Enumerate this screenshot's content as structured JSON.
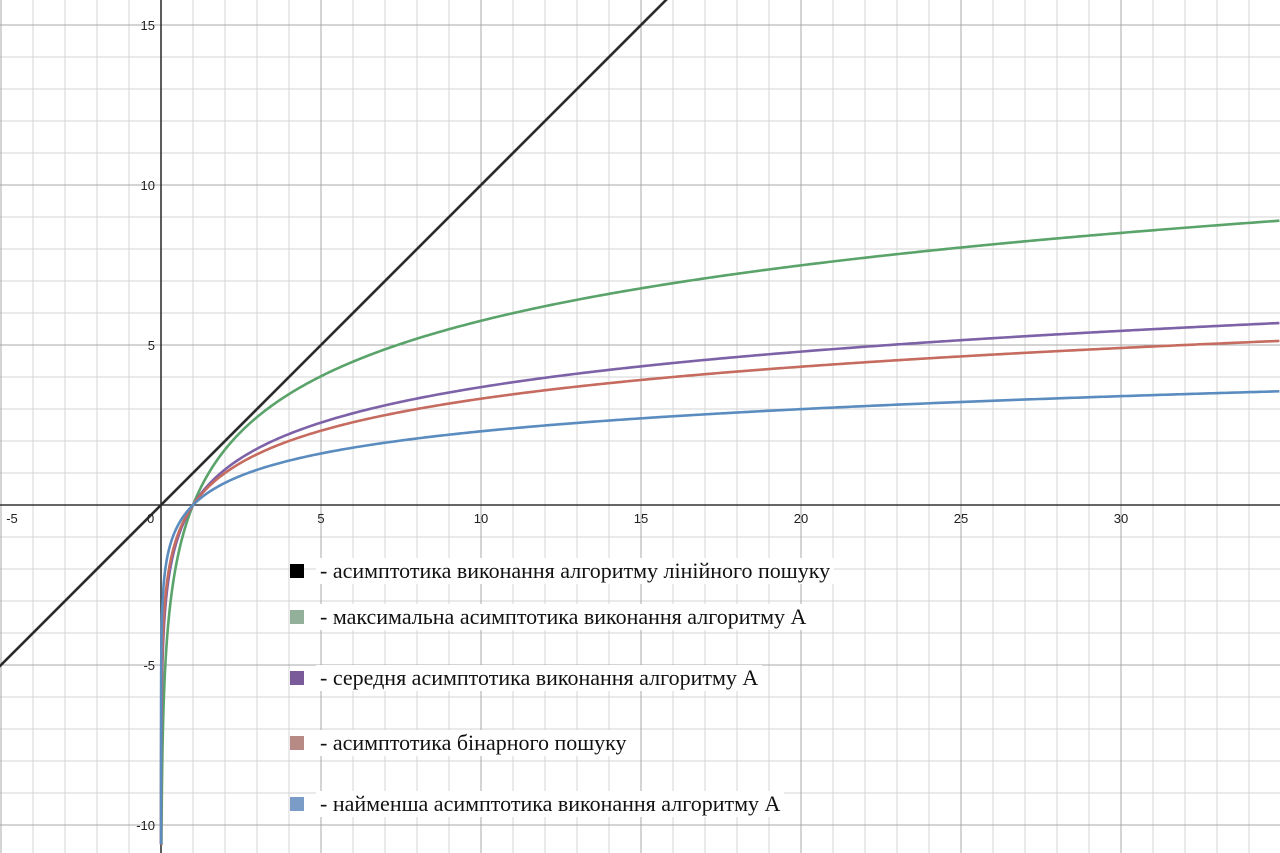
{
  "chart_data": {
    "type": "line",
    "title": "",
    "xlabel": "",
    "ylabel": "",
    "xlim": [
      -5,
      35
    ],
    "ylim": [
      -10.6,
      16
    ],
    "grid": true,
    "legend_placement": "bottom-center",
    "x_ticks": [
      "-5",
      "0",
      "5",
      "10",
      "15",
      "20",
      "25",
      "30"
    ],
    "y_ticks": [
      "-10",
      "-5",
      "5",
      "10",
      "15"
    ],
    "series": [
      {
        "name": "- асимптотика виконання алгоритму лінійного пошуку",
        "legend_swatch": "#000000",
        "color": "#2b2b2b",
        "function": "y = x",
        "x": [
          -5,
          0,
          5,
          10,
          15,
          16
        ],
        "y": [
          -5,
          0,
          5,
          10,
          15,
          16
        ]
      },
      {
        "name": "- максимальна асимптотика виконання алгоритму А",
        "legend_swatch": "#93b09a",
        "color": "#5aa36a",
        "function": "y = 2.5·ln(x)",
        "x": [
          1,
          2,
          5,
          10,
          15,
          20,
          25,
          30,
          35
        ],
        "y": [
          0,
          1.73,
          4.02,
          5.76,
          6.77,
          7.49,
          8.05,
          8.5,
          8.89
        ]
      },
      {
        "name": "- середня асимптотика виконання алгоритму А",
        "legend_swatch": "#7b5a99",
        "color": "#7e62a8",
        "function": "y = 1.6·ln(x)",
        "x": [
          1,
          2,
          5,
          10,
          15,
          20,
          25,
          30,
          35
        ],
        "y": [
          0,
          1.11,
          2.58,
          3.68,
          4.33,
          4.79,
          5.15,
          5.44,
          5.69
        ]
      },
      {
        "name": "- асимптотика бінарного пошуку",
        "legend_swatch": "#b88a86",
        "color": "#c66b5f",
        "function": "y = log2(x)",
        "x": [
          1,
          2,
          5,
          10,
          15,
          20,
          25,
          30,
          35
        ],
        "y": [
          0,
          1,
          2.32,
          3.32,
          3.91,
          4.32,
          4.64,
          4.91,
          5.13
        ]
      },
      {
        "name": "- найменша асимптотика виконання алгоритму А",
        "legend_swatch": "#7a9cc6",
        "color": "#5b8cbf",
        "function": "y = ln(x)",
        "x": [
          1,
          2,
          5,
          10,
          15,
          20,
          25,
          30,
          35
        ],
        "y": [
          0,
          0.69,
          1.61,
          2.3,
          2.71,
          3.0,
          3.22,
          3.4,
          3.56
        ]
      }
    ]
  }
}
